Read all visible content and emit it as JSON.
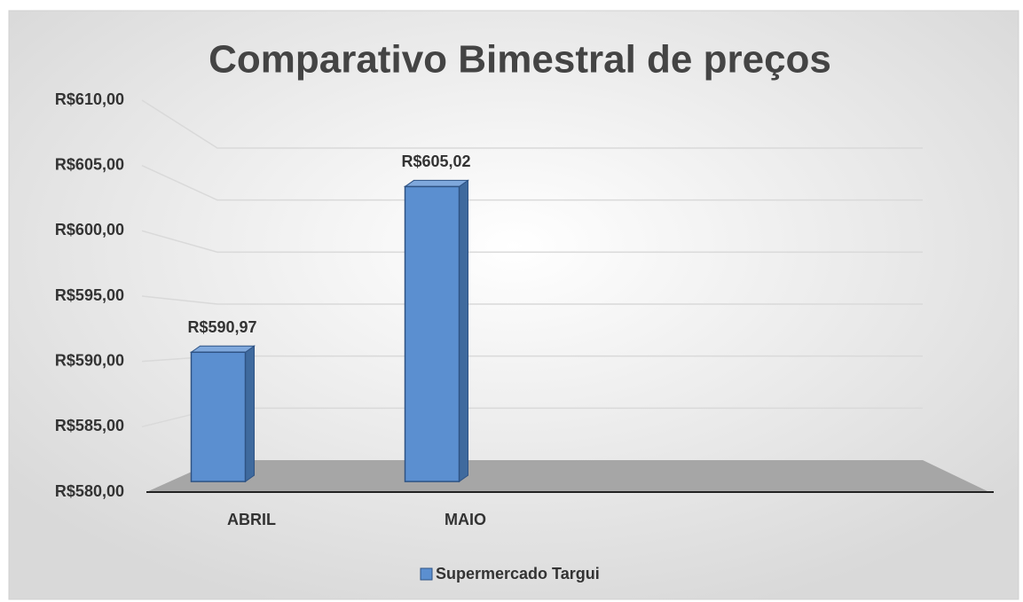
{
  "chart_data": {
    "type": "bar3d",
    "title": "Comparativo Bimestral de preços",
    "categories": [
      "ABRIL",
      "MAIO",
      null,
      null
    ],
    "series": [
      {
        "name": "Supermercado Targui",
        "color": "#5b8fd0",
        "values": [
          590.97,
          605.02,
          null,
          null
        ],
        "value_labels": [
          "R$590,97",
          "R$605,02",
          null,
          null
        ]
      }
    ],
    "ylim": [
      580,
      610
    ],
    "yticks": [
      {
        "value": 580,
        "label": "R$580,00"
      },
      {
        "value": 585,
        "label": "R$585,00"
      },
      {
        "value": 590,
        "label": "R$590,00"
      },
      {
        "value": 595,
        "label": "R$595,00"
      },
      {
        "value": 600,
        "label": "R$600,00"
      },
      {
        "value": 605,
        "label": "R$605,00"
      },
      {
        "value": 610,
        "label": "R$610,00"
      }
    ],
    "grid": true,
    "legend": "bottom"
  }
}
